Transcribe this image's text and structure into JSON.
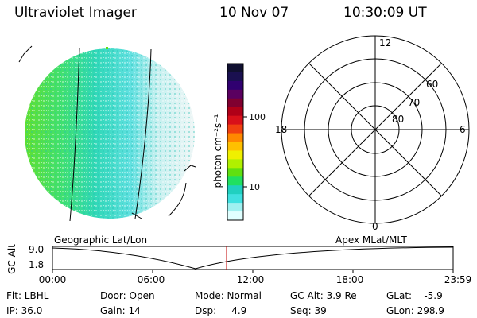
{
  "header": {
    "title": "Ultraviolet Imager",
    "date": "10 Nov 07",
    "time": "10:30:09 UT"
  },
  "colorbar": {
    "label": "photon cm⁻²s⁻¹",
    "ticks": [
      "100",
      "10"
    ],
    "colors": [
      "#101030",
      "#1a1050",
      "#300070",
      "#5a0060",
      "#800030",
      "#b00018",
      "#d8101a",
      "#f04010",
      "#ff8800",
      "#ffc000",
      "#f0f000",
      "#b0f000",
      "#60e010",
      "#20e060",
      "#20d0c0",
      "#40e0e0",
      "#a0f0f0",
      "#e0ffff"
    ]
  },
  "polar": {
    "mlt_labels": {
      "top": "12",
      "left": "18",
      "right": "6",
      "bottom": "0"
    },
    "lat_labels": [
      "60",
      "70",
      "80"
    ]
  },
  "timeline": {
    "left_title": "Geographic Lat/Lon",
    "right_title": "Apex MLat/MLT",
    "y_axis_label": "GC Alt",
    "y_ticks": [
      "9.0",
      "1.8"
    ],
    "x_ticks": [
      "00:00",
      "06:00",
      "12:00",
      "18:00",
      "23:59"
    ]
  },
  "info": {
    "flt": "Flt: LBHL",
    "ip": "IP: 36.0",
    "door": "Door: Open",
    "gain": "Gain: 14",
    "mode": "Mode: Normal",
    "dsp": "Dsp:     4.9",
    "gcalt": "GC Alt: 3.9 Re",
    "seq": "Seq: 39",
    "glat": "GLat:    -5.9",
    "glon": "GLon: 298.9"
  }
}
